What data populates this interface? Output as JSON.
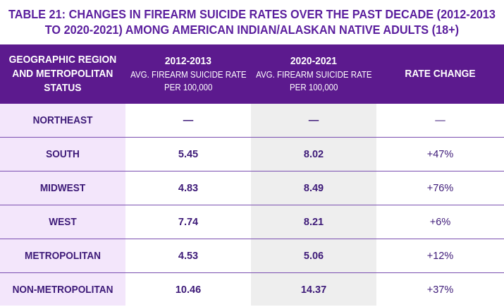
{
  "title_line1": "TABLE 21: CHANGES IN FIREARM SUICIDE RATES OVER THE PAST DECADE (2012-2013",
  "title_line2": "TO 2020-2021) AMONG AMERICAN INDIAN/ALASKAN NATIVE ADULTS (18+)",
  "header": {
    "col0": [
      "GEOGRAPHIC REGION",
      "AND METROPOLITAN",
      "STATUS"
    ],
    "col1_title": "2012-2013",
    "col1_sub1": "AVG. FIREARM SUICIDE RATE",
    "col1_sub2": "PER 100,000",
    "col2_title": "2020-2021",
    "col2_sub1": "AVG. FIREARM SUICIDE RATE",
    "col2_sub2": "PER 100,000",
    "col3_title": "RATE CHANGE"
  },
  "rows": [
    {
      "region": "NORTHEAST",
      "r2012": "—",
      "r2020": "—",
      "change": "—"
    },
    {
      "region": "SOUTH",
      "r2012": "5.45",
      "r2020": "8.02",
      "change": "+47%"
    },
    {
      "region": "MIDWEST",
      "r2012": "4.83",
      "r2020": "8.49",
      "change": "+76%"
    },
    {
      "region": "WEST",
      "r2012": "7.74",
      "r2020": "8.21",
      "change": "+6%"
    },
    {
      "region": "METROPOLITAN",
      "r2012": "4.53",
      "r2020": "5.06",
      "change": "+12%"
    },
    {
      "region": "NON-METROPOLITAN",
      "r2012": "10.46",
      "r2020": "14.37",
      "change": "+37%"
    }
  ],
  "colors": {
    "header_bg": "#5c1a8e",
    "title_text": "#5b1f9e",
    "body_text": "#3d1a78",
    "region_col_bg": "#f3e6fb",
    "col2_bg": "#eeeeee"
  }
}
